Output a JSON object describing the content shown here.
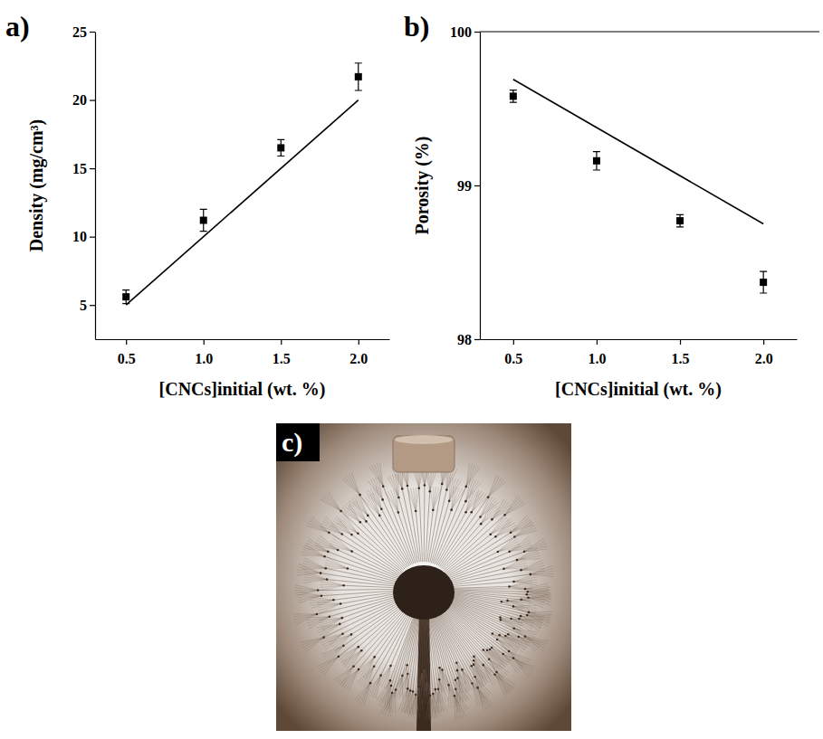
{
  "chart_data": [
    {
      "type": "scatter",
      "panel": "a)",
      "xlabel": "[CNCs]initial (wt. %)",
      "ylabel": "Density (mg/cm³)",
      "xlim": [
        0.3,
        2.2
      ],
      "xticks": [
        0.5,
        {
          "value": 1,
          "label": "1.0"
        },
        1.5,
        {
          "value": 2,
          "label": "2.0"
        }
      ],
      "ylim": [
        2.5,
        25
      ],
      "yticks": [
        5,
        10,
        15,
        20,
        25
      ],
      "series": [
        {
          "type": "scatter",
          "marker": "square",
          "color": "#000000",
          "x": [
            0.5,
            1.0,
            1.5,
            2.0
          ],
          "values": [
            5.6,
            11.2,
            16.5,
            21.7
          ],
          "errors": [
            0.5,
            0.8,
            0.6,
            1.0
          ]
        },
        {
          "type": "line",
          "line_style": "solid",
          "color": "#000000",
          "x": [
            0.5,
            2.0
          ],
          "values": [
            5,
            20
          ]
        }
      ]
    },
    {
      "type": "scatter",
      "panel": "b)",
      "xlabel": "[CNCs]initial (wt. %)",
      "ylabel": "Porosity (%)",
      "xlim": [
        0.3,
        2.2
      ],
      "xticks": [
        0.5,
        {
          "value": 1,
          "label": "1.0"
        },
        1.5,
        {
          "value": 2,
          "label": "2.0"
        }
      ],
      "ylim": [
        98,
        100
      ],
      "yticks": [
        98,
        99,
        100
      ],
      "series": [
        {
          "type": "scatter",
          "marker": "square",
          "color": "#000000",
          "x": [
            0.5,
            1.0,
            1.5,
            2.0
          ],
          "values": [
            99.58,
            99.16,
            98.77,
            98.37
          ],
          "errors": [
            0.04,
            0.06,
            0.04,
            0.07
          ]
        },
        {
          "type": "line",
          "line_style": "solid",
          "color": "#000000",
          "x": [
            0.5,
            2.0
          ],
          "values": [
            99.69,
            98.75
          ]
        }
      ]
    }
  ],
  "photo": {
    "panel": "c)"
  }
}
